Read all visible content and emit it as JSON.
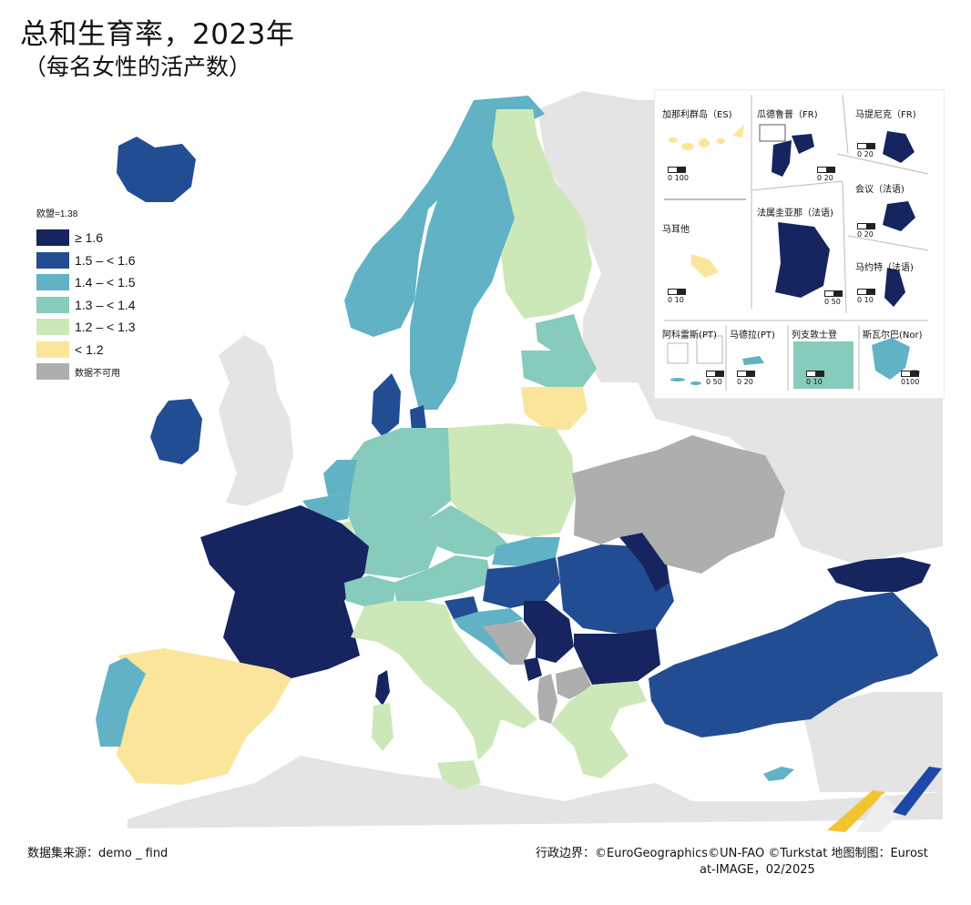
{
  "title": "总和生育率，2023年",
  "subtitle": "（每名女性的活产数）",
  "colors": {
    "ge_1_6": "#16255f",
    "r1_5_1_6": "#234d93",
    "r1_4_1_5": "#61b2c5",
    "r1_3_1_4": "#86cbbc",
    "r1_2_1_3": "#cde8b8",
    "lt_1_2": "#fae59a",
    "na": "#aeaeae",
    "non_eu": "#e4e4e4",
    "sea": "#ffffff"
  },
  "legend": {
    "eu_value": "欧盟=1.38",
    "items": [
      {
        "key": "ge_1_6",
        "label": "≥ 1.6"
      },
      {
        "key": "r1_5_1_6",
        "label": "1.5 – < 1.6"
      },
      {
        "key": "r1_4_1_5",
        "label": "1.4 – < 1.5"
      },
      {
        "key": "r1_3_1_4",
        "label": "1.3 – < 1.4"
      },
      {
        "key": "r1_2_1_3",
        "label": "1.2 – < 1.3"
      },
      {
        "key": "lt_1_2",
        "label": "< 1.2"
      },
      {
        "key": "na",
        "label": "数据不可用"
      }
    ]
  },
  "insets": {
    "canary": {
      "label": "加那利群岛（ES)",
      "scale": "0   100"
    },
    "guadeloupe": {
      "label": "瓜德鲁普（FR)",
      "scale": "0  20"
    },
    "martinique": {
      "label": "马提尼克（FR)",
      "scale": "0  20"
    },
    "reunion": {
      "label": "会议（法语)",
      "scale": "0  20"
    },
    "malta": {
      "label": "马耳他",
      "scale": "0   10"
    },
    "guiana": {
      "label": "法属圭亚那（法语)",
      "scale": "0  50"
    },
    "mayotte": {
      "label": "马约特（法语)",
      "scale": "0  10"
    },
    "azores": {
      "label": "阿科雷斯(PT)",
      "scale": "0  50"
    },
    "madeira": {
      "label": "马德拉(PT)",
      "scale": "0  20"
    },
    "liechtenstein": {
      "label": "列支敦士登",
      "scale": "0    10"
    },
    "svalbard": {
      "label": "斯瓦尔巴(Nor)",
      "scale": "0100"
    }
  },
  "footer": {
    "source": "数据集来源：demo _ find",
    "credit_line1": "行政边界：©EuroGeographics©UN-FAO ©Turkstat 地图制图：Eurost",
    "credit_line2": "at-IMAGE，02/2025"
  },
  "map_data": {
    "regions": [
      {
        "name": "Iceland",
        "class": "r1_5_1_6"
      },
      {
        "name": "Ireland",
        "class": "r1_5_1_6"
      },
      {
        "name": "France",
        "class": "ge_1_6"
      },
      {
        "name": "Spain",
        "class": "lt_1_2"
      },
      {
        "name": "Portugal",
        "class": "r1_4_1_5"
      },
      {
        "name": "Norway",
        "class": "r1_4_1_5"
      },
      {
        "name": "Sweden",
        "class": "r1_4_1_5"
      },
      {
        "name": "Finland",
        "class": "r1_2_1_3"
      },
      {
        "name": "Denmark",
        "class": "r1_5_1_6"
      },
      {
        "name": "Estonia",
        "class": "r1_3_1_4"
      },
      {
        "name": "Latvia",
        "class": "r1_3_1_4"
      },
      {
        "name": "Lithuania",
        "class": "lt_1_2"
      },
      {
        "name": "Poland",
        "class": "r1_2_1_3"
      },
      {
        "name": "Germany",
        "class": "r1_3_1_4"
      },
      {
        "name": "Netherlands",
        "class": "r1_4_1_5"
      },
      {
        "name": "Belgium",
        "class": "r1_4_1_5"
      },
      {
        "name": "Luxembourg",
        "class": "r1_2_1_3"
      },
      {
        "name": "Switzerland",
        "class": "r1_3_1_4"
      },
      {
        "name": "Austria",
        "class": "r1_3_1_4"
      },
      {
        "name": "Czechia",
        "class": "r1_3_1_4"
      },
      {
        "name": "Slovakia",
        "class": "r1_4_1_5"
      },
      {
        "name": "Hungary",
        "class": "r1_5_1_6"
      },
      {
        "name": "Romania",
        "class": "r1_5_1_6"
      },
      {
        "name": "Moldova",
        "class": "ge_1_6"
      },
      {
        "name": "Bulgaria",
        "class": "ge_1_6"
      },
      {
        "name": "Serbia",
        "class": "ge_1_6"
      },
      {
        "name": "Montenegro",
        "class": "ge_1_6"
      },
      {
        "name": "Slovenia",
        "class": "r1_5_1_6"
      },
      {
        "name": "Croatia",
        "class": "r1_4_1_5"
      },
      {
        "name": "Bosnia and Herzegovina",
        "class": "na"
      },
      {
        "name": "Albania",
        "class": "na"
      },
      {
        "name": "North Macedonia",
        "class": "na"
      },
      {
        "name": "Ukraine",
        "class": "na"
      },
      {
        "name": "Italy",
        "class": "r1_2_1_3"
      },
      {
        "name": "Greece",
        "class": "r1_2_1_3"
      },
      {
        "name": "Türkiye",
        "class": "r1_5_1_6"
      },
      {
        "name": "Georgia",
        "class": "ge_1_6"
      },
      {
        "name": "Cyprus",
        "class": "r1_4_1_5"
      },
      {
        "name": "Malta",
        "class": "lt_1_2"
      },
      {
        "name": "Corsica",
        "class": "ge_1_6"
      }
    ]
  }
}
